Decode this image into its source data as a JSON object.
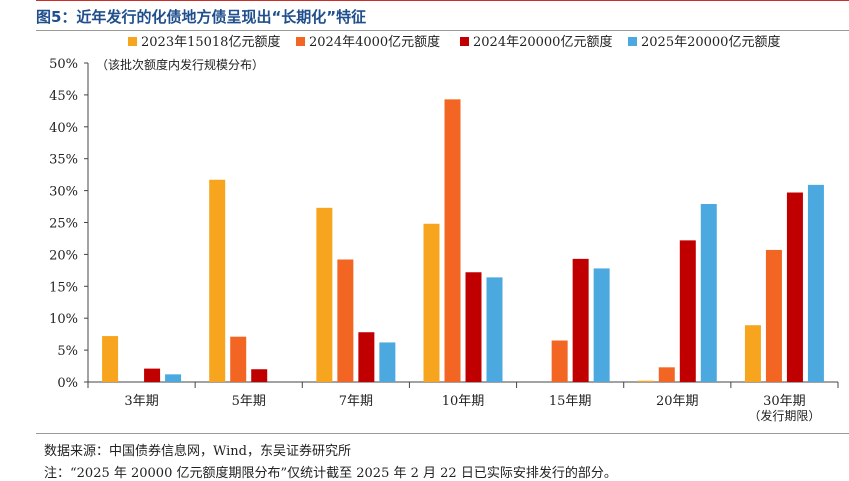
{
  "header": {
    "title": "图5：近年发行的化债地方债呈现出“长期化”特征"
  },
  "footer": {
    "source": "数据来源：中国债券信息网，Wind，东吴证券研究所",
    "note": "注：“2025 年 20000 亿元额度期限分布”仅统计截至 2025 年 2 月 22 日已实际安排发行的部分。"
  },
  "chart_data": {
    "type": "bar",
    "annotation": "（该批次额度内发行规模分布）",
    "categories": [
      "3年期",
      "5年期",
      "7年期",
      "10年期",
      "15年期",
      "20年期",
      "30年期"
    ],
    "category_sublabels": [
      "",
      "",
      "",
      "",
      "",
      "",
      "（发行期限）"
    ],
    "y_ticks": [
      "0%",
      "5%",
      "10%",
      "15%",
      "20%",
      "25%",
      "30%",
      "35%",
      "40%",
      "45%",
      "50%"
    ],
    "ylim": [
      0,
      50
    ],
    "unit": "%",
    "legend_position": "top",
    "series": [
      {
        "name": "2023年15018亿元额度",
        "color": "#f7a51f",
        "values": [
          7.2,
          31.7,
          27.3,
          24.8,
          0.0,
          0.2,
          8.9
        ]
      },
      {
        "name": "2024年4000亿元额度",
        "color": "#f26522",
        "values": [
          0.0,
          7.1,
          19.2,
          44.3,
          6.5,
          2.3,
          20.7
        ]
      },
      {
        "name": "2024年20000亿元额度",
        "color": "#c00000",
        "values": [
          2.1,
          2.0,
          7.8,
          17.2,
          19.3,
          22.2,
          29.7
        ]
      },
      {
        "name": "2025年20000亿元额度",
        "color": "#4ca9e0",
        "values": [
          1.2,
          0.0,
          6.2,
          16.4,
          17.8,
          27.9,
          30.9
        ]
      }
    ]
  }
}
